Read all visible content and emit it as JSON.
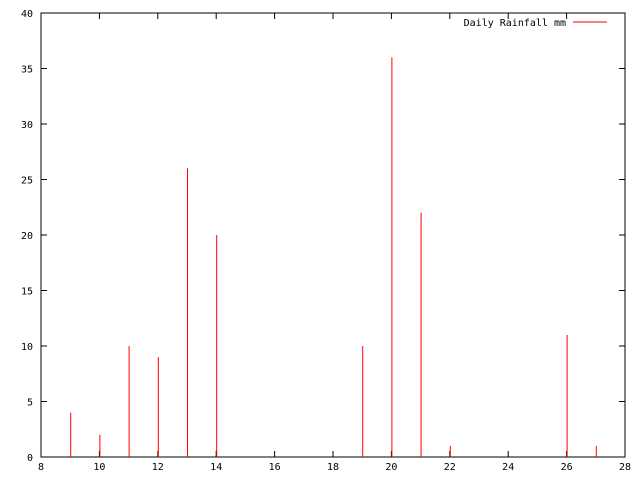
{
  "chart_data": {
    "type": "bar",
    "style": "impulses",
    "series": [
      {
        "name": "Daily Rainfall mm",
        "color": "#ff0000",
        "x": [
          9,
          10,
          11,
          12,
          13,
          14,
          19,
          20,
          21,
          22,
          26,
          27
        ],
        "values": [
          4,
          2,
          10,
          9,
          26,
          20,
          10,
          36,
          22,
          1,
          11,
          1
        ]
      }
    ],
    "title": "",
    "xlabel": "",
    "ylabel": "",
    "xlim": [
      8,
      28
    ],
    "ylim": [
      0,
      40
    ],
    "x_ticks": [
      "8",
      "10",
      "12",
      "14",
      "16",
      "18",
      "20",
      "22",
      "24",
      "26",
      "28"
    ],
    "y_ticks": [
      "0",
      "5",
      "10",
      "15",
      "20",
      "25",
      "30",
      "35",
      "40"
    ],
    "grid": false,
    "legend_position": "top-right"
  }
}
